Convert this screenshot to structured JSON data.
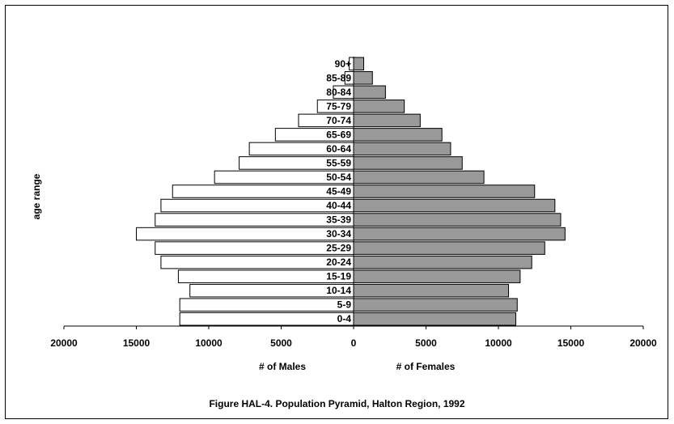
{
  "chart_data": {
    "type": "bar",
    "orientation": "horizontal-pyramid",
    "categories": [
      "0-4",
      "5-9",
      "10-14",
      "15-19",
      "20-24",
      "25-29",
      "30-34",
      "35-39",
      "40-44",
      "45-49",
      "50-54",
      "55-59",
      "60-64",
      "65-69",
      "70-74",
      "75-79",
      "80-84",
      "85-89",
      "90+"
    ],
    "series": [
      {
        "name": "# of Males",
        "values": [
          12000,
          12000,
          11300,
          12100,
          13300,
          13700,
          15000,
          13700,
          13300,
          12500,
          9600,
          7900,
          7200,
          5400,
          3800,
          2500,
          1400,
          600,
          300
        ],
        "color": "#ffffff"
      },
      {
        "name": "# of  Females",
        "values": [
          11200,
          11300,
          10700,
          11500,
          12300,
          13200,
          14600,
          14300,
          13900,
          12500,
          9000,
          7500,
          6700,
          6100,
          4600,
          3500,
          2200,
          1300,
          700
        ],
        "color": "#999999"
      }
    ],
    "xticks": [
      "20000",
      "15000",
      "10000",
      "5000",
      "0",
      "5000",
      "10000",
      "15000",
      "20000"
    ],
    "xlim": [
      -20000,
      20000
    ],
    "xlabel_left": "# of Males",
    "xlabel_right": "# of  Females",
    "ylabel": "age range",
    "caption": "Figure HAL-4.  Population Pyramid, Halton Region, 1992",
    "grid": false,
    "legend": "none"
  }
}
